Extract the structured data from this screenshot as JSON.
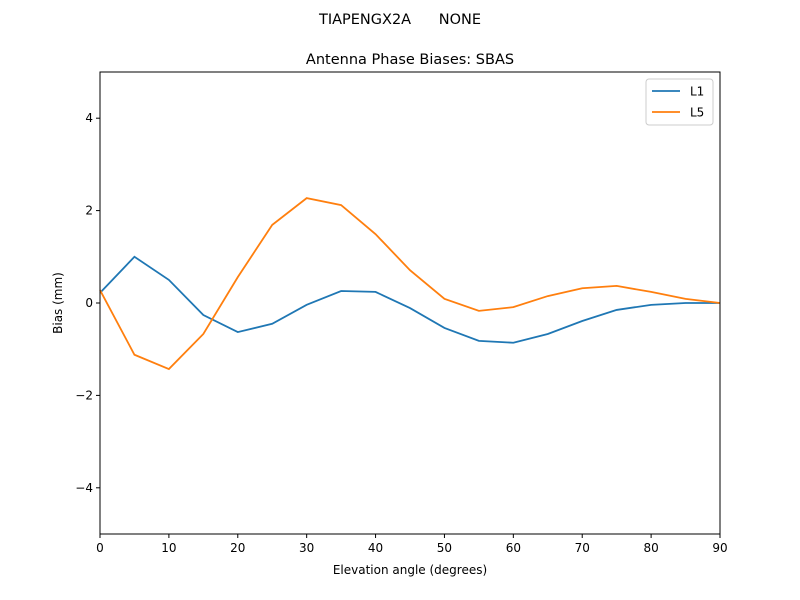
{
  "chart_data": {
    "type": "line",
    "suptitle": "TIAPENGX2A      NONE",
    "title": "Antenna Phase Biases: SBAS",
    "xlabel": "Elevation angle (degrees)",
    "ylabel": "Bias (mm)",
    "xlim": [
      0,
      90
    ],
    "ylim": [
      -5,
      5
    ],
    "xticks": [
      0,
      10,
      20,
      30,
      40,
      50,
      60,
      70,
      80,
      90
    ],
    "xtick_labels": [
      "0",
      "10",
      "20",
      "30",
      "40",
      "50",
      "60",
      "70",
      "80",
      "90"
    ],
    "yticks": [
      -4,
      -2,
      0,
      2,
      4
    ],
    "ytick_labels": [
      "−4",
      "−2",
      "0",
      "2",
      "4"
    ],
    "grid": false,
    "legend_position": "top-right",
    "x": [
      0,
      5,
      10,
      15,
      20,
      25,
      30,
      35,
      40,
      45,
      50,
      55,
      60,
      65,
      70,
      75,
      80,
      85,
      90
    ],
    "series": [
      {
        "name": "L1",
        "color": "#1f77b4",
        "values": [
          0.22,
          1.0,
          0.5,
          -0.26,
          -0.63,
          -0.45,
          -0.04,
          0.26,
          0.24,
          -0.11,
          -0.54,
          -0.82,
          -0.86,
          -0.67,
          -0.39,
          -0.15,
          -0.04,
          0.0,
          0.0
        ]
      },
      {
        "name": "L5",
        "color": "#ff7f0e",
        "values": [
          0.28,
          -1.12,
          -1.43,
          -0.67,
          0.56,
          1.69,
          2.27,
          2.12,
          1.49,
          0.71,
          0.09,
          -0.17,
          -0.09,
          0.15,
          0.32,
          0.37,
          0.24,
          0.09,
          0.0
        ]
      }
    ]
  }
}
